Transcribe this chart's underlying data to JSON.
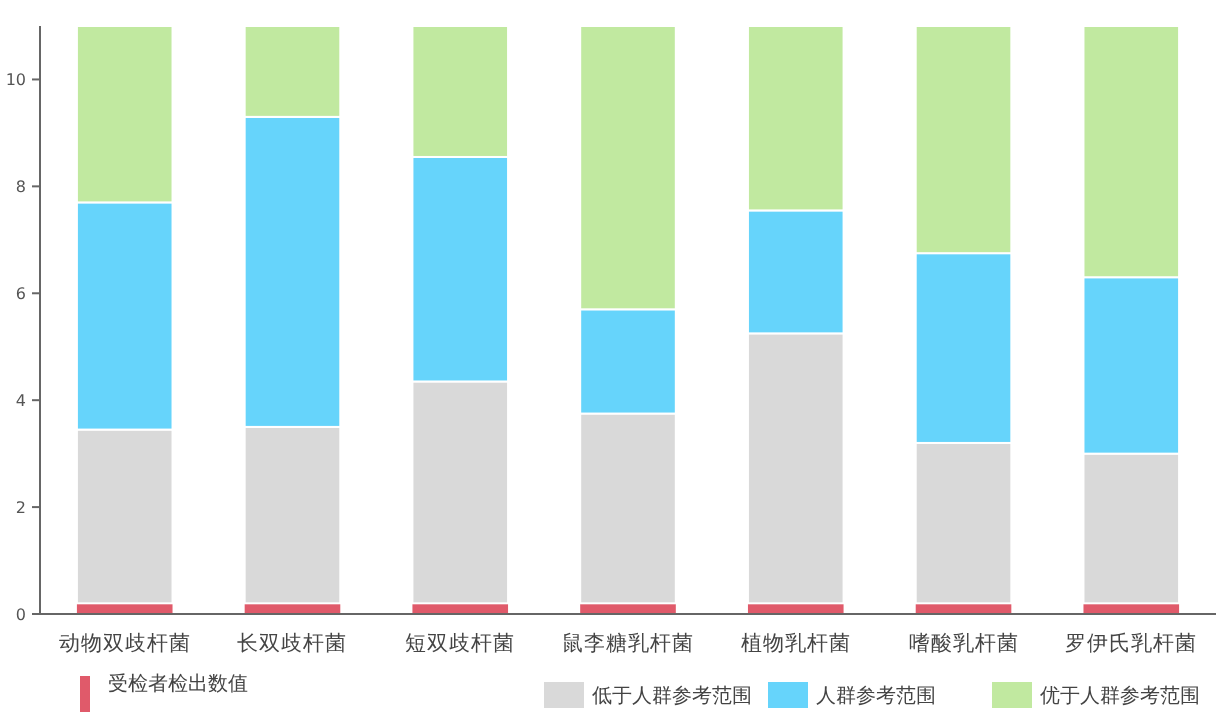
{
  "chart_data": {
    "type": "bar",
    "stacked": true,
    "categories": [
      "动物双歧杆菌",
      "长双歧杆菌",
      "短双歧杆菌",
      "鼠李糖乳杆菌",
      "植物乳杆菌",
      "嗜酸乳杆菌",
      "罗伊氏乳杆菌"
    ],
    "series": [
      {
        "name": "受检者检出数值",
        "color": "#e05a6a",
        "values": [
          0.2,
          0.2,
          0.2,
          0.2,
          0.2,
          0.2,
          0.2
        ]
      },
      {
        "name": "低于人群参考范围",
        "color": "#d9d9d9",
        "values": [
          3.25,
          3.3,
          4.15,
          3.55,
          5.05,
          3.0,
          2.8
        ]
      },
      {
        "name": "人群参考范围",
        "color": "#66d4fb",
        "values": [
          4.25,
          5.8,
          4.2,
          1.95,
          2.3,
          3.55,
          3.3
        ]
      },
      {
        "name": "优于人群参考范围",
        "color": "#c1e9a0",
        "values": [
          3.3,
          1.7,
          2.45,
          5.3,
          3.45,
          4.25,
          4.7
        ]
      }
    ],
    "ylim": [
      0,
      11
    ],
    "yticks": [
      0,
      2,
      4,
      6,
      8,
      10
    ],
    "grid": false,
    "legend": "bottom"
  }
}
